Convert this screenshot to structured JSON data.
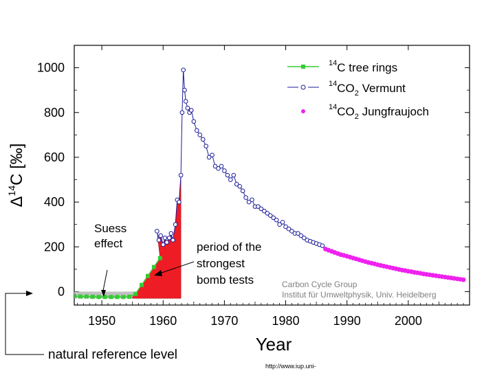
{
  "chart_data": {
    "type": "line",
    "title": "",
    "xlabel": "Year",
    "ylabel": "Δ14C [‰]",
    "ylabel_parts": {
      "delta": "Δ",
      "sup": "14",
      "rest": "C [‰]"
    },
    "xlim": [
      1945.5,
      2010
    ],
    "ylim": [
      -60,
      1100
    ],
    "x_ticks": [
      1950,
      1960,
      1970,
      1980,
      1990,
      2000
    ],
    "y_ticks": [
      0,
      200,
      400,
      600,
      800,
      1000
    ],
    "legend_position": "top-right",
    "series": [
      {
        "name": "14C tree rings",
        "legend": {
          "sup": "14",
          "main": "C tree rings",
          "sub": ""
        },
        "color": "#33cc33",
        "marker": "square",
        "x": [
          1945.5,
          1946.5,
          1947.5,
          1948.5,
          1949.5,
          1950.5,
          1951.5,
          1952.5,
          1953.5,
          1954.5,
          1955.5,
          1956.5,
          1957.5,
          1958.5,
          1959.5
        ],
        "values": [
          -20,
          -22,
          -22,
          -23,
          -24,
          -24,
          -24,
          -24,
          -24,
          -23,
          -10,
          30,
          70,
          110,
          150
        ]
      },
      {
        "name": "14CO2 Vermunt",
        "legend": {
          "sup": "14",
          "main": "CO",
          "sub": "2",
          "tail": " Vermunt"
        },
        "color": "#1a1a99",
        "marker": "circle-open",
        "x": [
          1959.0,
          1959.3,
          1959.6,
          1960.0,
          1960.3,
          1960.6,
          1961.0,
          1961.3,
          1961.6,
          1962.0,
          1962.3,
          1962.6,
          1962.9,
          1963.1,
          1963.3,
          1963.5,
          1963.7,
          1964.0,
          1964.3,
          1964.6,
          1965.0,
          1965.5,
          1966.0,
          1966.5,
          1967.0,
          1967.5,
          1968.0,
          1968.5,
          1969.0,
          1969.5,
          1970.0,
          1970.5,
          1971.0,
          1971.5,
          1972.0,
          1972.5,
          1973.0,
          1973.5,
          1974.0,
          1974.5,
          1975.0,
          1975.5,
          1976.0,
          1976.5,
          1977.0,
          1977.5,
          1978.0,
          1978.5,
          1979.0,
          1979.5,
          1980.0,
          1980.5,
          1981.0,
          1981.5,
          1982.0,
          1982.5,
          1983.0,
          1983.5,
          1984.0,
          1984.5,
          1985.0,
          1985.5,
          1986.0
        ],
        "values": [
          270,
          230,
          250,
          210,
          240,
          220,
          240,
          260,
          230,
          300,
          410,
          400,
          520,
          800,
          990,
          900,
          850,
          820,
          800,
          810,
          760,
          720,
          700,
          680,
          650,
          600,
          610,
          560,
          550,
          560,
          540,
          520,
          500,
          520,
          480,
          470,
          450,
          420,
          400,
          410,
          380,
          380,
          370,
          360,
          350,
          340,
          330,
          320,
          300,
          310,
          290,
          280,
          270,
          260,
          260,
          250,
          240,
          230,
          225,
          220,
          215,
          210,
          205
        ]
      },
      {
        "name": "14CO2 Jungfraujoch",
        "legend": {
          "sup": "14",
          "main": "CO",
          "sub": "2",
          "tail": " Jungfraujoch"
        },
        "color": "#ee22ee",
        "marker": "dot",
        "x": [
          1986.5,
          1987.0,
          1987.5,
          1988.0,
          1988.5,
          1989.0,
          1989.5,
          1990.0,
          1990.5,
          1991.0,
          1991.5,
          1992.0,
          1992.5,
          1993.0,
          1993.5,
          1994.0,
          1994.5,
          1995.0,
          1995.5,
          1996.0,
          1996.5,
          1997.0,
          1997.5,
          1998.0,
          1998.5,
          1999.0,
          1999.5,
          2000.0,
          2000.5,
          2001.0,
          2001.5,
          2002.0,
          2002.5,
          2003.0,
          2003.5,
          2004.0,
          2004.5,
          2005.0,
          2005.5,
          2006.0,
          2006.5,
          2007.0,
          2007.5,
          2008.0,
          2008.5,
          2009.0
        ],
        "values": [
          190,
          185,
          180,
          175,
          170,
          165,
          162,
          158,
          154,
          150,
          146,
          142,
          138,
          134,
          130,
          127,
          124,
          120,
          117,
          114,
          111,
          108,
          105,
          102,
          99,
          96,
          94,
          91,
          89,
          86,
          84,
          82,
          79,
          77,
          75,
          73,
          71,
          69,
          67,
          65,
          63,
          61,
          59,
          57,
          55,
          53
        ]
      }
    ],
    "annotations": {
      "suess_line1": "Suess",
      "suess_line2": "effect",
      "bomb_line1": "period of the",
      "bomb_line2": "strongest",
      "bomb_line3": "bomb tests",
      "credit_line1": "Carbon Cycle Group",
      "credit_line2": "Institut für Umweltphysik, Univ. Heidelberg",
      "reference": "natural reference level",
      "url": "http://www.iup.uni-"
    }
  }
}
